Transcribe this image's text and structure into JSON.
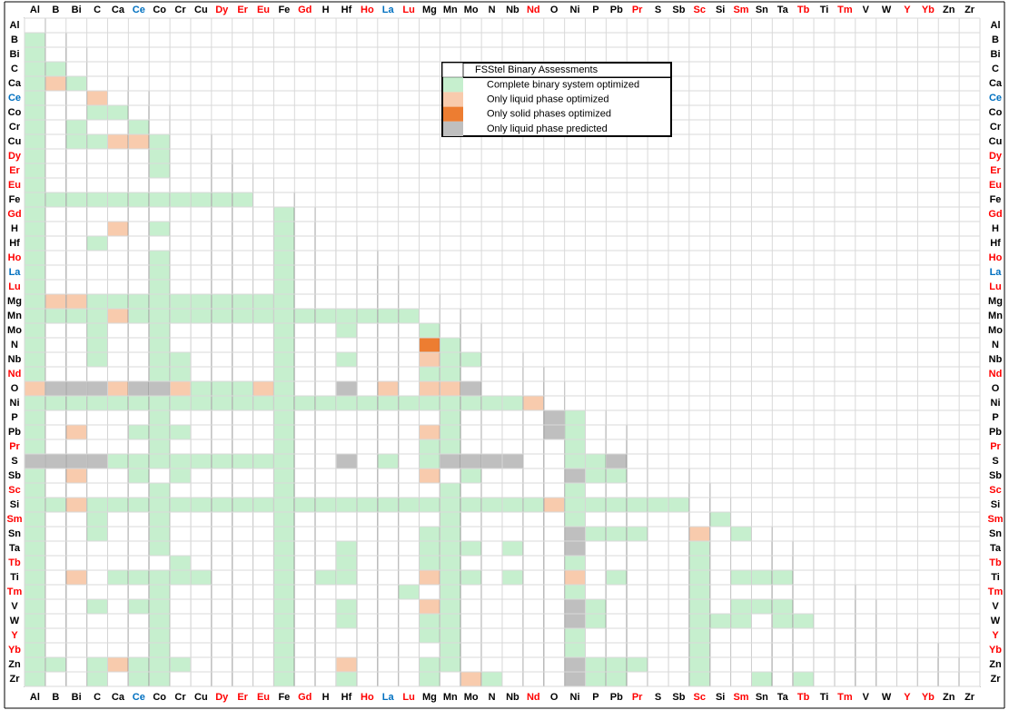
{
  "chart_data": {
    "type": "heatmap",
    "title": "",
    "legend": {
      "title": "FSStel Binary Assessments",
      "placement": "top-right",
      "entries": [
        {
          "key": "C",
          "label": "Complete binary system optimized",
          "color": "#c6efce"
        },
        {
          "key": "L",
          "label": "Only liquid phase optimized",
          "color": "#f8cbad"
        },
        {
          "key": "S",
          "label": "Only solid phases optimized",
          "color": "#ed7d31"
        },
        {
          "key": "P",
          "label": "Only liquid phase predicted",
          "color": "#bfbfbf"
        }
      ]
    },
    "elements": [
      "Al",
      "B",
      "Bi",
      "C",
      "Ca",
      "Ce",
      "Co",
      "Cr",
      "Cu",
      "Dy",
      "Er",
      "Eu",
      "Fe",
      "Gd",
      "H",
      "Hf",
      "Ho",
      "La",
      "Lu",
      "Mg",
      "Mn",
      "Mo",
      "N",
      "Nb",
      "Nd",
      "O",
      "Ni",
      "P",
      "Pb",
      "Pr",
      "S",
      "Sb",
      "Sc",
      "Si",
      "Sm",
      "Sn",
      "Ta",
      "Tb",
      "Ti",
      "Tm",
      "V",
      "W",
      "Y",
      "Yb",
      "Zn",
      "Zr"
    ],
    "label_colors": {
      "Ce": "#0070c0",
      "La": "#0070c0",
      "Dy": "#ff0000",
      "Er": "#ff0000",
      "Eu": "#ff0000",
      "Gd": "#ff0000",
      "Ho": "#ff0000",
      "Lu": "#ff0000",
      "Nd": "#ff0000",
      "Pr": "#ff0000",
      "Sc": "#ff0000",
      "Sm": "#ff0000",
      "Tb": "#ff0000",
      "Tm": "#ff0000",
      "Y": "#ff0000",
      "Yb": "#ff0000"
    },
    "rows": [
      "",
      "C",
      "C",
      "CC",
      "CLC",
      "C  L",
      "C  CC",
      "C C  C",
      "C CCLLC",
      "C     C",
      "C     C",
      "C       ",
      "CCCCCCCCCCC",
      "C           C",
      "C   L C     C",
      "C  C        C",
      "C     C     C",
      "C     C     C",
      "C     C     C",
      "CLLCCCCCCCCCC",
      "CCCCLCCCCCCCCCCCCCC",
      "C  C  C     C  C   C",
      "C  C  C     C      SC",
      "C  C  CC    C  C   LCC",
      "C     CC    C      CC",
      "LPPPLPPLCCCLC  P L LLP",
      "CCCCCCCCCCCCCCCCCCCCCCCCL",
      "C     C     C       C    PC",
      "C L  CCC    C      LC    PC",
      "C     C     C      CC     C",
      "PPPPCCCCCCCCC  P C CPPPP  CCP",
      "C L  C C    C      L C    PCC",
      "C     C     C       C     C",
      "CCLCCCCCCCCCCCCCCCCCCCCCCLCCCCCC",
      "C  C  C     C       C     C      C",
      "C  C  C     C      CC     PCCC  L C",
      "C     C     C  C   CCC C  P     C",
      "C      C    C  C   CC     C     C",
      "C L CCCCC   C CC   LCC C  L C   C CCC",
      "C     C     C     C C     C     C",
      "C  C CC     C  C   LC     PC    C CCC",
      "C     C     C  C   CC     PC    CCC CC",
      "C     C     C      CC     C     C",
      "C     C     C       C     C     C",
      "CC CLCCC    C  L   CC     PCCC  C",
      "C  C CC     C  C   C LC   PCC   C  C C"
    ]
  }
}
